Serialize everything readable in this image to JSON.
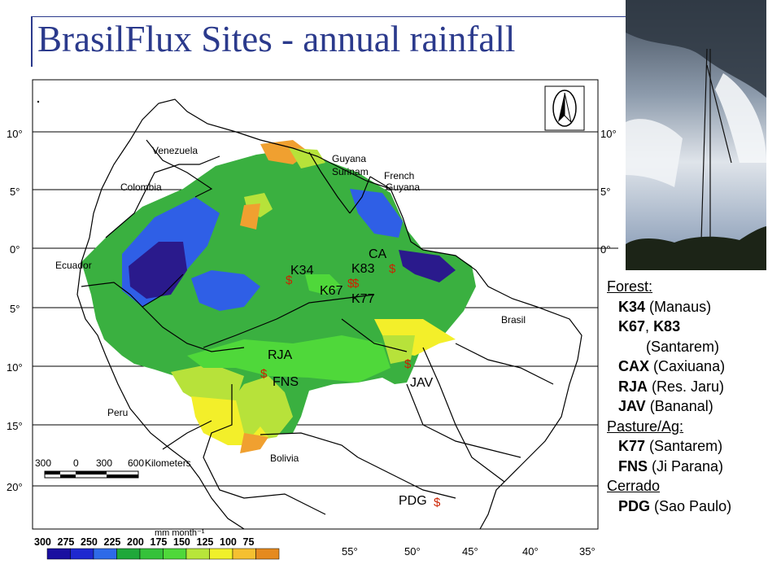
{
  "title": "BrasilFlux Sites - annual rainfall",
  "map": {
    "lat_labels_left": [
      "10°",
      "5°",
      "0°",
      "5°",
      "10°",
      "15°",
      "20°"
    ],
    "lat_labels_right": [
      "10°",
      "5°",
      "0°"
    ],
    "lon_labels": [
      "55°",
      "50°",
      "45°",
      "40°",
      "35°"
    ],
    "countries": [
      "Venezuela",
      "Colombia",
      "Guyana",
      "Surinam",
      "French Guyana",
      "Ecuador",
      "Peru",
      "Bolivia",
      "Brasil"
    ],
    "sites": [
      "K34",
      "K67",
      "K83",
      "K77",
      "CA",
      "RJA",
      "FNS",
      "JAV",
      "PDG"
    ],
    "site_marker": "$",
    "scale_bar": {
      "ticks": [
        "300",
        "0",
        "300",
        "600"
      ],
      "unit": "Kilometers"
    },
    "colorbar": {
      "unit": "mm month⁻¹",
      "ticks": [
        "300",
        "275",
        "250",
        "225",
        "200",
        "175",
        "150",
        "125",
        "100",
        "75"
      ],
      "colors": [
        "#1a0fa0",
        "#1e28d0",
        "#2e6ae8",
        "#1fa83a",
        "#35c23a",
        "#4fd83a",
        "#b8e63a",
        "#f0f02a",
        "#f5c030",
        "#e58a1f"
      ]
    },
    "colors": {
      "deep_blue": "#2a1a8c",
      "blue": "#2f5fe6",
      "green": "#3ab040",
      "lime": "#b7e23a",
      "yellow": "#f3ef2a",
      "orange": "#f0a030",
      "marker": "#cc2200"
    }
  },
  "legend": {
    "forest_heading": "Forest:",
    "forest": [
      {
        "code": "K34",
        "place": "(Manaus)"
      },
      {
        "code": "K67",
        "sep": ",",
        "code2": "K83"
      },
      {
        "cont": "(Santarem)"
      },
      {
        "code": "CAX",
        "place": "(Caxiuana)"
      },
      {
        "code": "RJA",
        "place": "(Res. Jaru)"
      },
      {
        "code": "JAV",
        "place": "(Bananal)"
      }
    ],
    "pasture_heading": "Pasture/Ag:",
    "pasture": [
      {
        "code": "K77",
        "place": "(Santarem)"
      },
      {
        "code": "FNS",
        "place": "(Ji Parana)"
      }
    ],
    "cerrado_heading": "Cerrado",
    "cerrado": [
      {
        "code": "PDG",
        "place": "(Sao Paulo)"
      }
    ]
  }
}
